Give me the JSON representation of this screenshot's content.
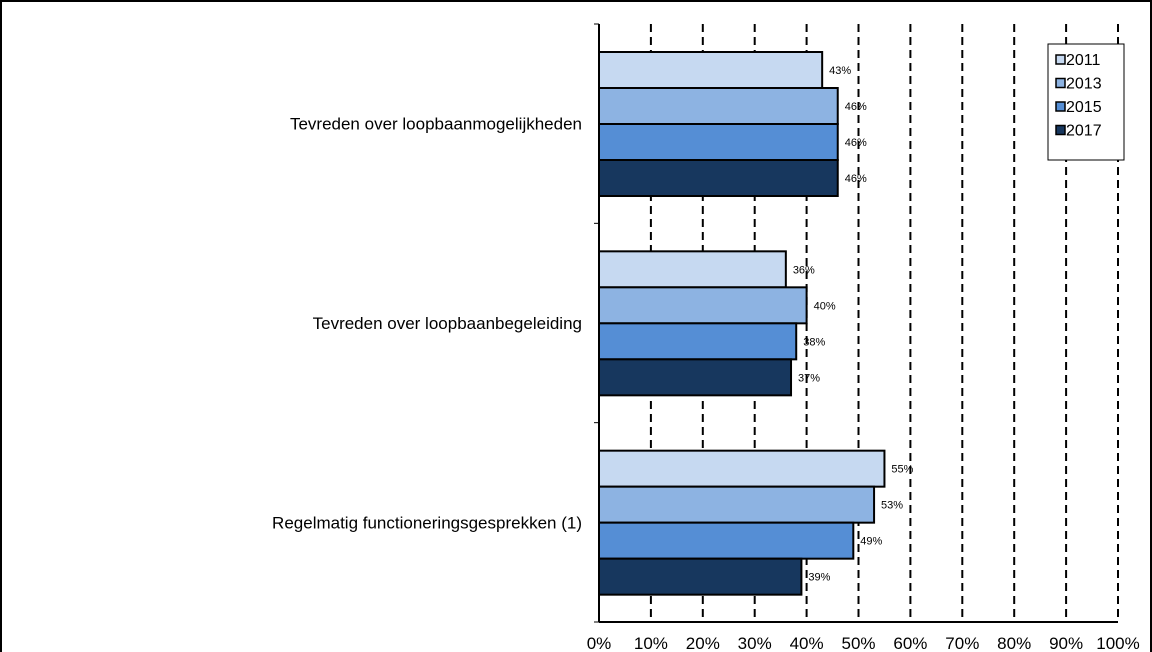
{
  "chart_data": {
    "type": "bar",
    "orientation": "horizontal",
    "categories": [
      "Tevreden over loopbaanmogelijkheden",
      "Tevreden over loopbaanbegeleiding",
      "Regelmatig functioneringsgesprekken (1)"
    ],
    "series": [
      {
        "name": "2011",
        "color": "#C6D9F1",
        "values": [
          43,
          36,
          55
        ],
        "labels": [
          "43%",
          "36%",
          "55%"
        ]
      },
      {
        "name": "2013",
        "color": "#8DB3E2",
        "values": [
          46,
          40,
          53
        ],
        "labels": [
          "46%",
          "40%",
          "53%"
        ]
      },
      {
        "name": "2015",
        "color": "#558ED5",
        "values": [
          46,
          38,
          49
        ],
        "labels": [
          "46%",
          "38%",
          "49%"
        ]
      },
      {
        "name": "2017",
        "color": "#17375E",
        "values": [
          46,
          37,
          39
        ],
        "labels": [
          "46%",
          "37%",
          "39%"
        ]
      }
    ],
    "xlim": [
      0,
      100
    ],
    "xticks": [
      "0%",
      "10%",
      "20%",
      "30%",
      "40%",
      "50%",
      "60%",
      "70%",
      "80%",
      "90%",
      "100%"
    ],
    "title": "",
    "xlabel": "",
    "ylabel": "",
    "grid": "vertical dashed",
    "legend_position": "top-right"
  }
}
